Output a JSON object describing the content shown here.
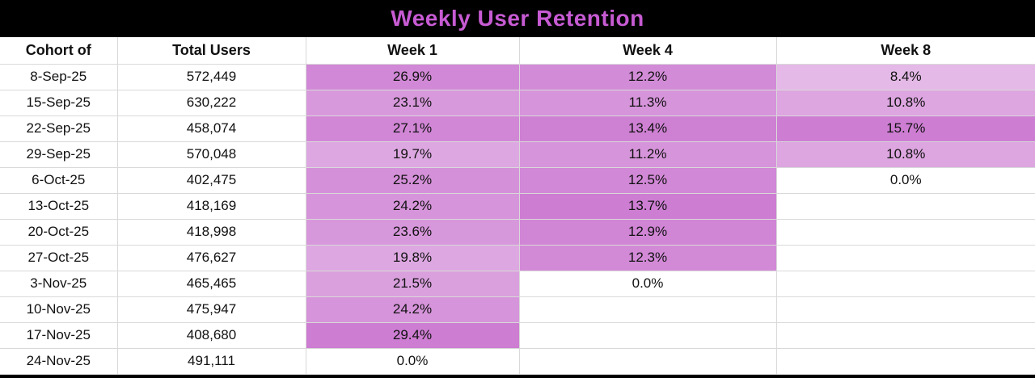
{
  "title": "Weekly User Retention",
  "colors": {
    "title_text": "#c75bd3",
    "bar_bg": "#000000",
    "heat_max": "#cd7dd2",
    "grid": "#d9d9d9"
  },
  "chart_data": {
    "type": "table",
    "title": "Weekly User Retention",
    "columns": [
      "Cohort of",
      "Total Users",
      "Week 1",
      "Week 4",
      "Week 8"
    ],
    "week_keys": [
      "week1",
      "week4",
      "week8"
    ],
    "heatmap_note": "per-column two-color scale: 0% = white, column max = heat_max purple",
    "rows": [
      {
        "cohort": "8-Sep-25",
        "total_users": 572449,
        "week1": 26.9,
        "week4": 12.2,
        "week8": 8.4
      },
      {
        "cohort": "15-Sep-25",
        "total_users": 630222,
        "week1": 23.1,
        "week4": 11.3,
        "week8": 10.8
      },
      {
        "cohort": "22-Sep-25",
        "total_users": 458074,
        "week1": 27.1,
        "week4": 13.4,
        "week8": 15.7
      },
      {
        "cohort": "29-Sep-25",
        "total_users": 570048,
        "week1": 19.7,
        "week4": 11.2,
        "week8": 10.8
      },
      {
        "cohort": "6-Oct-25",
        "total_users": 402475,
        "week1": 25.2,
        "week4": 12.5,
        "week8": 0.0
      },
      {
        "cohort": "13-Oct-25",
        "total_users": 418169,
        "week1": 24.2,
        "week4": 13.7,
        "week8": null
      },
      {
        "cohort": "20-Oct-25",
        "total_users": 418998,
        "week1": 23.6,
        "week4": 12.9,
        "week8": null
      },
      {
        "cohort": "27-Oct-25",
        "total_users": 476627,
        "week1": 19.8,
        "week4": 12.3,
        "week8": null
      },
      {
        "cohort": "3-Nov-25",
        "total_users": 465465,
        "week1": 21.5,
        "week4": 0.0,
        "week8": null
      },
      {
        "cohort": "10-Nov-25",
        "total_users": 475947,
        "week1": 24.2,
        "week4": null,
        "week8": null
      },
      {
        "cohort": "17-Nov-25",
        "total_users": 408680,
        "week1": 29.4,
        "week4": null,
        "week8": null
      },
      {
        "cohort": "24-Nov-25",
        "total_users": 491111,
        "week1": 0.0,
        "week4": null,
        "week8": null
      }
    ]
  }
}
